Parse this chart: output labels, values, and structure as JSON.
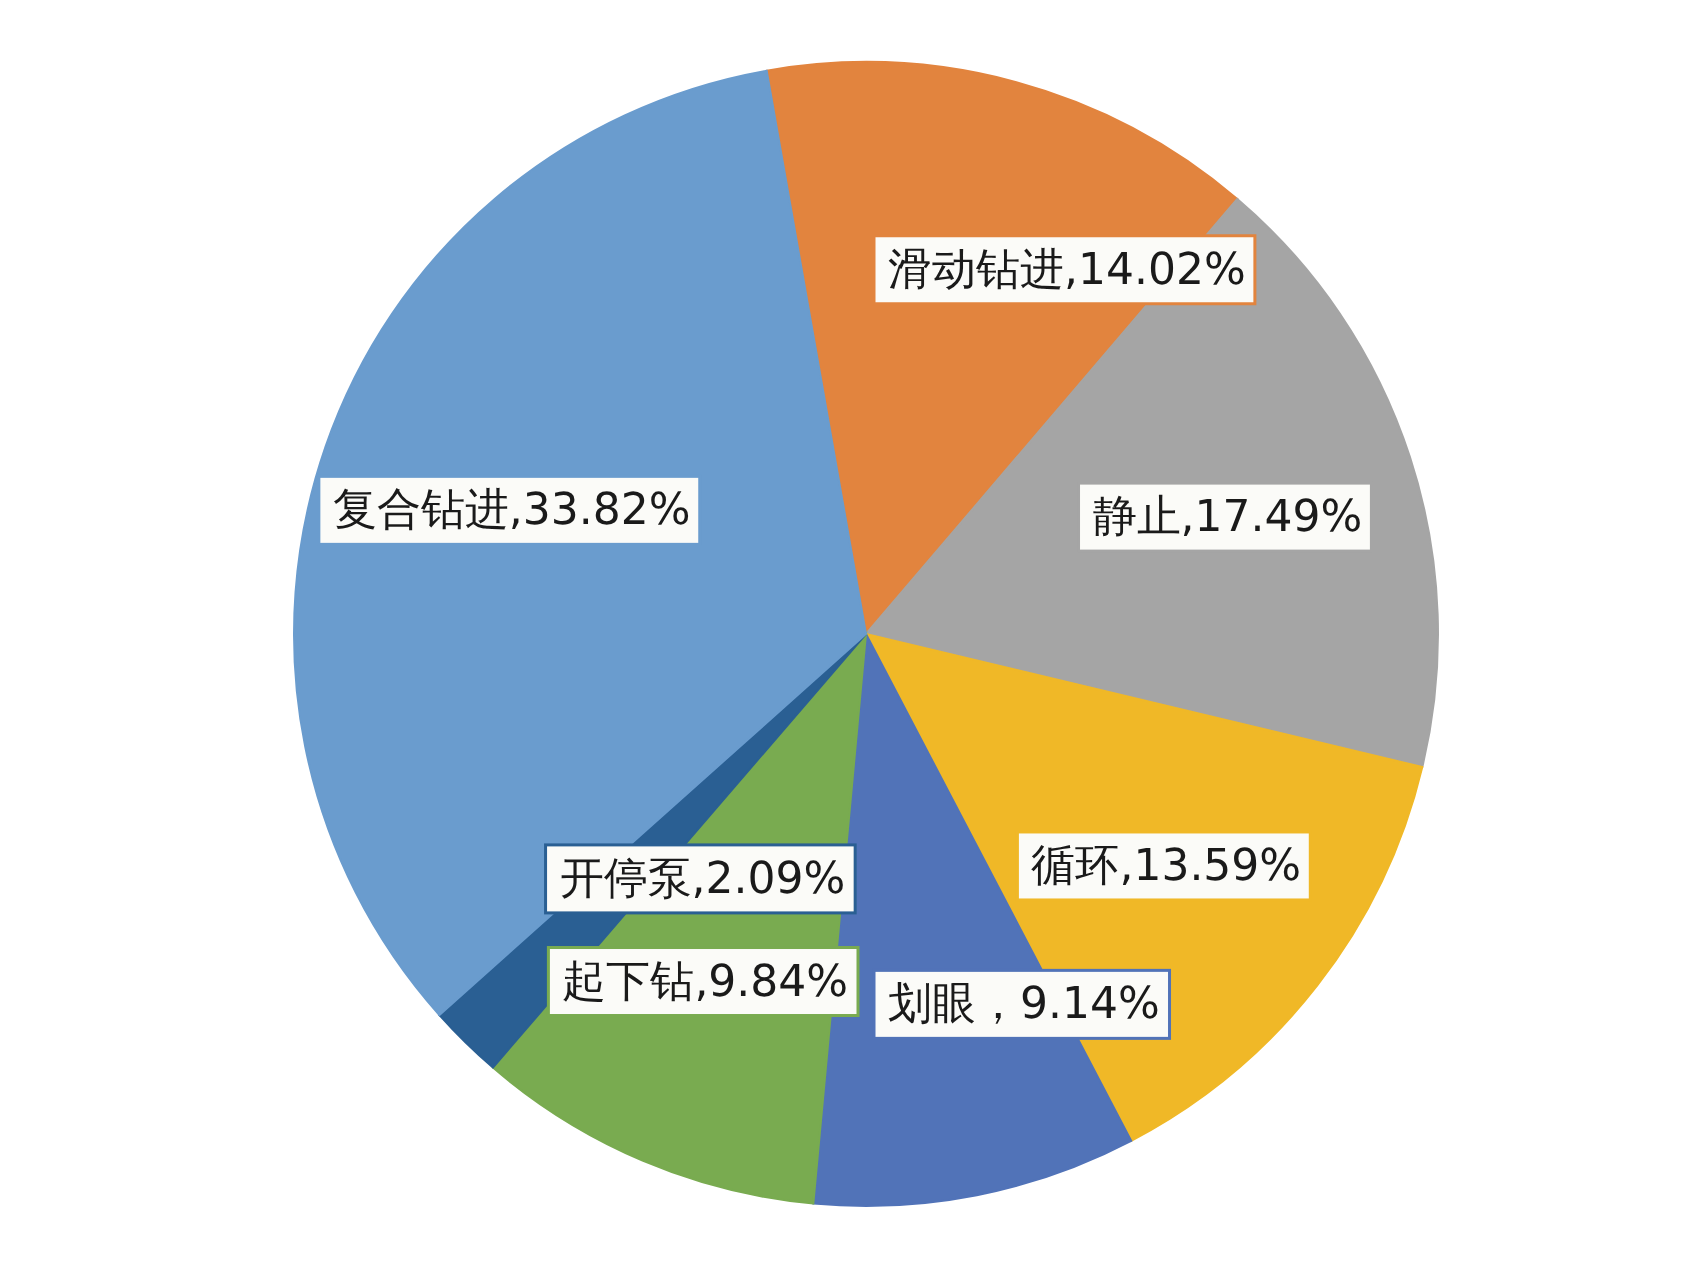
{
  "chart_data": {
    "type": "pie",
    "categories": [
      "滑动钻进",
      "静止",
      "循环",
      "划眼",
      "起下钻",
      "开停泵",
      "复合钻进"
    ],
    "values": [
      14.02,
      17.49,
      13.59,
      9.14,
      9.84,
      2.09,
      33.82
    ],
    "colors": [
      "#e2843e",
      "#a5a5a5",
      "#f0b827",
      "#5173b8",
      "#79ab50",
      "#2a5f93",
      "#6a9cce"
    ],
    "value_labels": [
      ",14.02%",
      ",17.49%",
      ",13.59%",
      "，9.14%",
      ",9.84%",
      ",2.09%",
      ",33.82%"
    ]
  }
}
